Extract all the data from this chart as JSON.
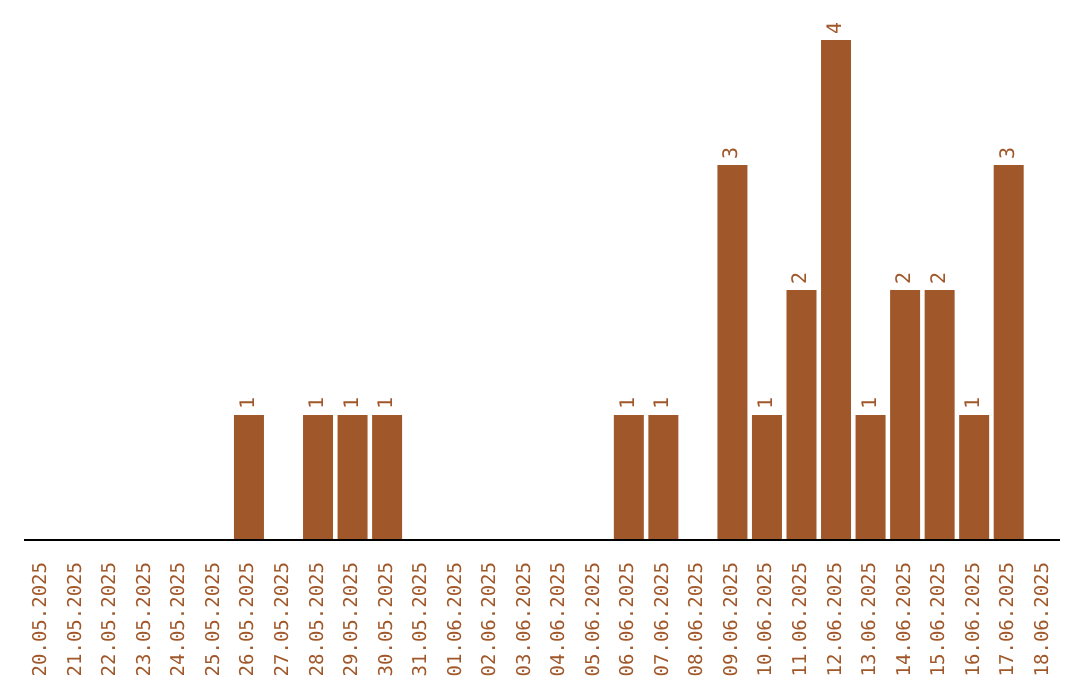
{
  "chart_data": {
    "type": "bar",
    "color": "#a0582a",
    "tick_labels": "x",
    "categories": [
      "20.05.2025",
      "21.05.2025",
      "22.05.2025",
      "23.05.2025",
      "24.05.2025",
      "25.05.2025",
      "26.05.2025",
      "27.05.2025",
      "28.05.2025",
      "29.05.2025",
      "30.05.2025",
      "31.05.2025",
      "01.06.2025",
      "02.06.2025",
      "03.06.2025",
      "04.06.2025",
      "05.06.2025",
      "06.06.2025",
      "07.06.2025",
      "08.06.2025",
      "09.06.2025",
      "10.06.2025",
      "11.06.2025",
      "12.06.2025",
      "13.06.2025",
      "14.06.2025",
      "15.06.2025",
      "16.06.2025",
      "17.06.2025",
      "18.06.2025"
    ],
    "values": [
      0,
      0,
      0,
      0,
      0,
      0,
      1,
      0,
      1,
      1,
      1,
      0,
      0,
      0,
      0,
      0,
      0,
      1,
      1,
      0,
      3,
      1,
      2,
      4,
      1,
      2,
      2,
      1,
      3,
      0
    ],
    "value_labels": [
      null,
      null,
      null,
      null,
      null,
      null,
      "1",
      null,
      "1",
      "1",
      "1",
      null,
      null,
      null,
      null,
      null,
      null,
      "1",
      "1",
      null,
      "3",
      "1",
      "2",
      "4",
      "1",
      "2",
      "2",
      "1",
      "3",
      null
    ]
  }
}
